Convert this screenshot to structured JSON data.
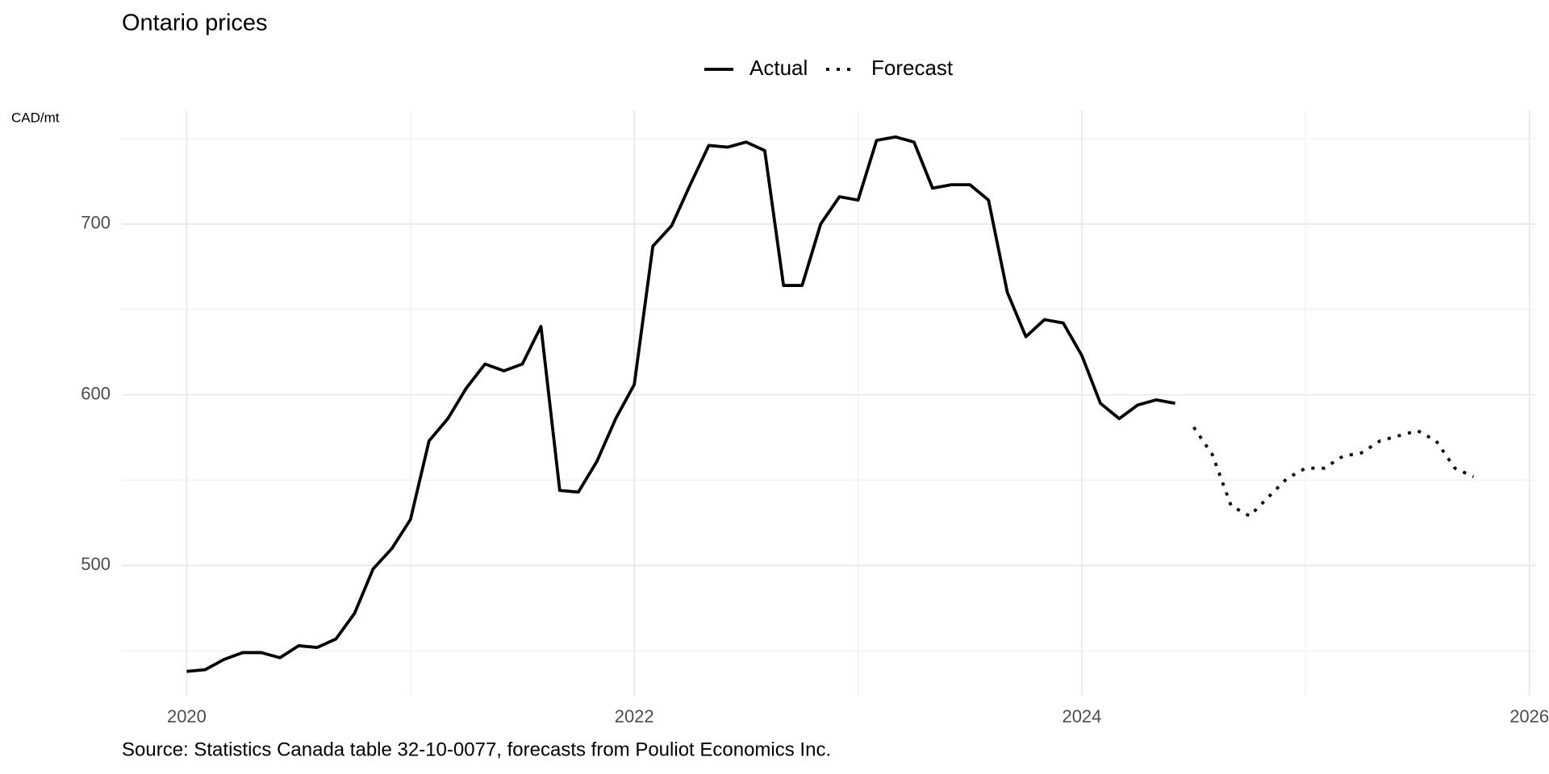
{
  "chart_data": {
    "type": "line",
    "title": "Ontario prices",
    "ylabel": "CAD/mt",
    "source": "Source: Statistics Canada table 32-10-0077, forecasts from Pouliot Economics Inc.",
    "xlim": [
      2019.71,
      2026.03
    ],
    "xticks": [
      2020,
      2022,
      2024,
      2026
    ],
    "xminor": [
      2021,
      2023,
      2025
    ],
    "ylim": [
      423.7,
      766.5
    ],
    "yticks": [
      500,
      600,
      700
    ],
    "yminor": [
      450,
      550,
      650,
      750
    ],
    "grid": true,
    "legend": "top",
    "series": [
      {
        "name": "Actual",
        "color": "#000000",
        "dash": "solid",
        "x": [
          2020,
          2020.083,
          2020.167,
          2020.25,
          2020.333,
          2020.417,
          2020.5,
          2020.583,
          2020.667,
          2020.75,
          2020.833,
          2020.917,
          2021,
          2021.083,
          2021.167,
          2021.25,
          2021.333,
          2021.417,
          2021.5,
          2021.583,
          2021.667,
          2021.75,
          2021.833,
          2021.917,
          2022,
          2022.083,
          2022.167,
          2022.25,
          2022.333,
          2022.417,
          2022.5,
          2022.583,
          2022.667,
          2022.75,
          2022.833,
          2022.917,
          2023,
          2023.083,
          2023.167,
          2023.25,
          2023.333,
          2023.417,
          2023.5,
          2023.583,
          2023.667,
          2023.75,
          2023.833,
          2023.917,
          2024,
          2024.083,
          2024.167,
          2024.25,
          2024.333,
          2024.417
        ],
        "values": [
          438,
          439,
          445,
          449,
          449,
          446,
          453,
          452,
          457,
          472,
          498,
          510,
          527,
          573,
          586,
          604,
          618,
          614,
          618,
          640,
          544,
          543,
          561,
          586,
          606,
          687,
          699,
          723,
          746,
          745,
          748,
          743,
          664,
          664,
          700,
          716,
          714,
          749,
          751,
          748,
          721,
          723,
          723,
          714,
          660,
          634,
          644,
          642,
          623,
          595,
          586,
          594,
          597,
          595
        ]
      },
      {
        "name": "Forecast",
        "color": "#000000",
        "dash": "dotted",
        "x": [
          2024.5,
          2024.583,
          2024.667,
          2024.75,
          2024.833,
          2024.917,
          2025,
          2025.083,
          2025.167,
          2025.25,
          2025.333,
          2025.417,
          2025.5,
          2025.583,
          2025.667,
          2025.75
        ],
        "values": [
          581,
          565,
          535,
          529,
          540,
          551,
          557,
          557,
          564,
          566,
          573,
          576,
          579,
          573,
          557,
          552
        ]
      }
    ]
  }
}
